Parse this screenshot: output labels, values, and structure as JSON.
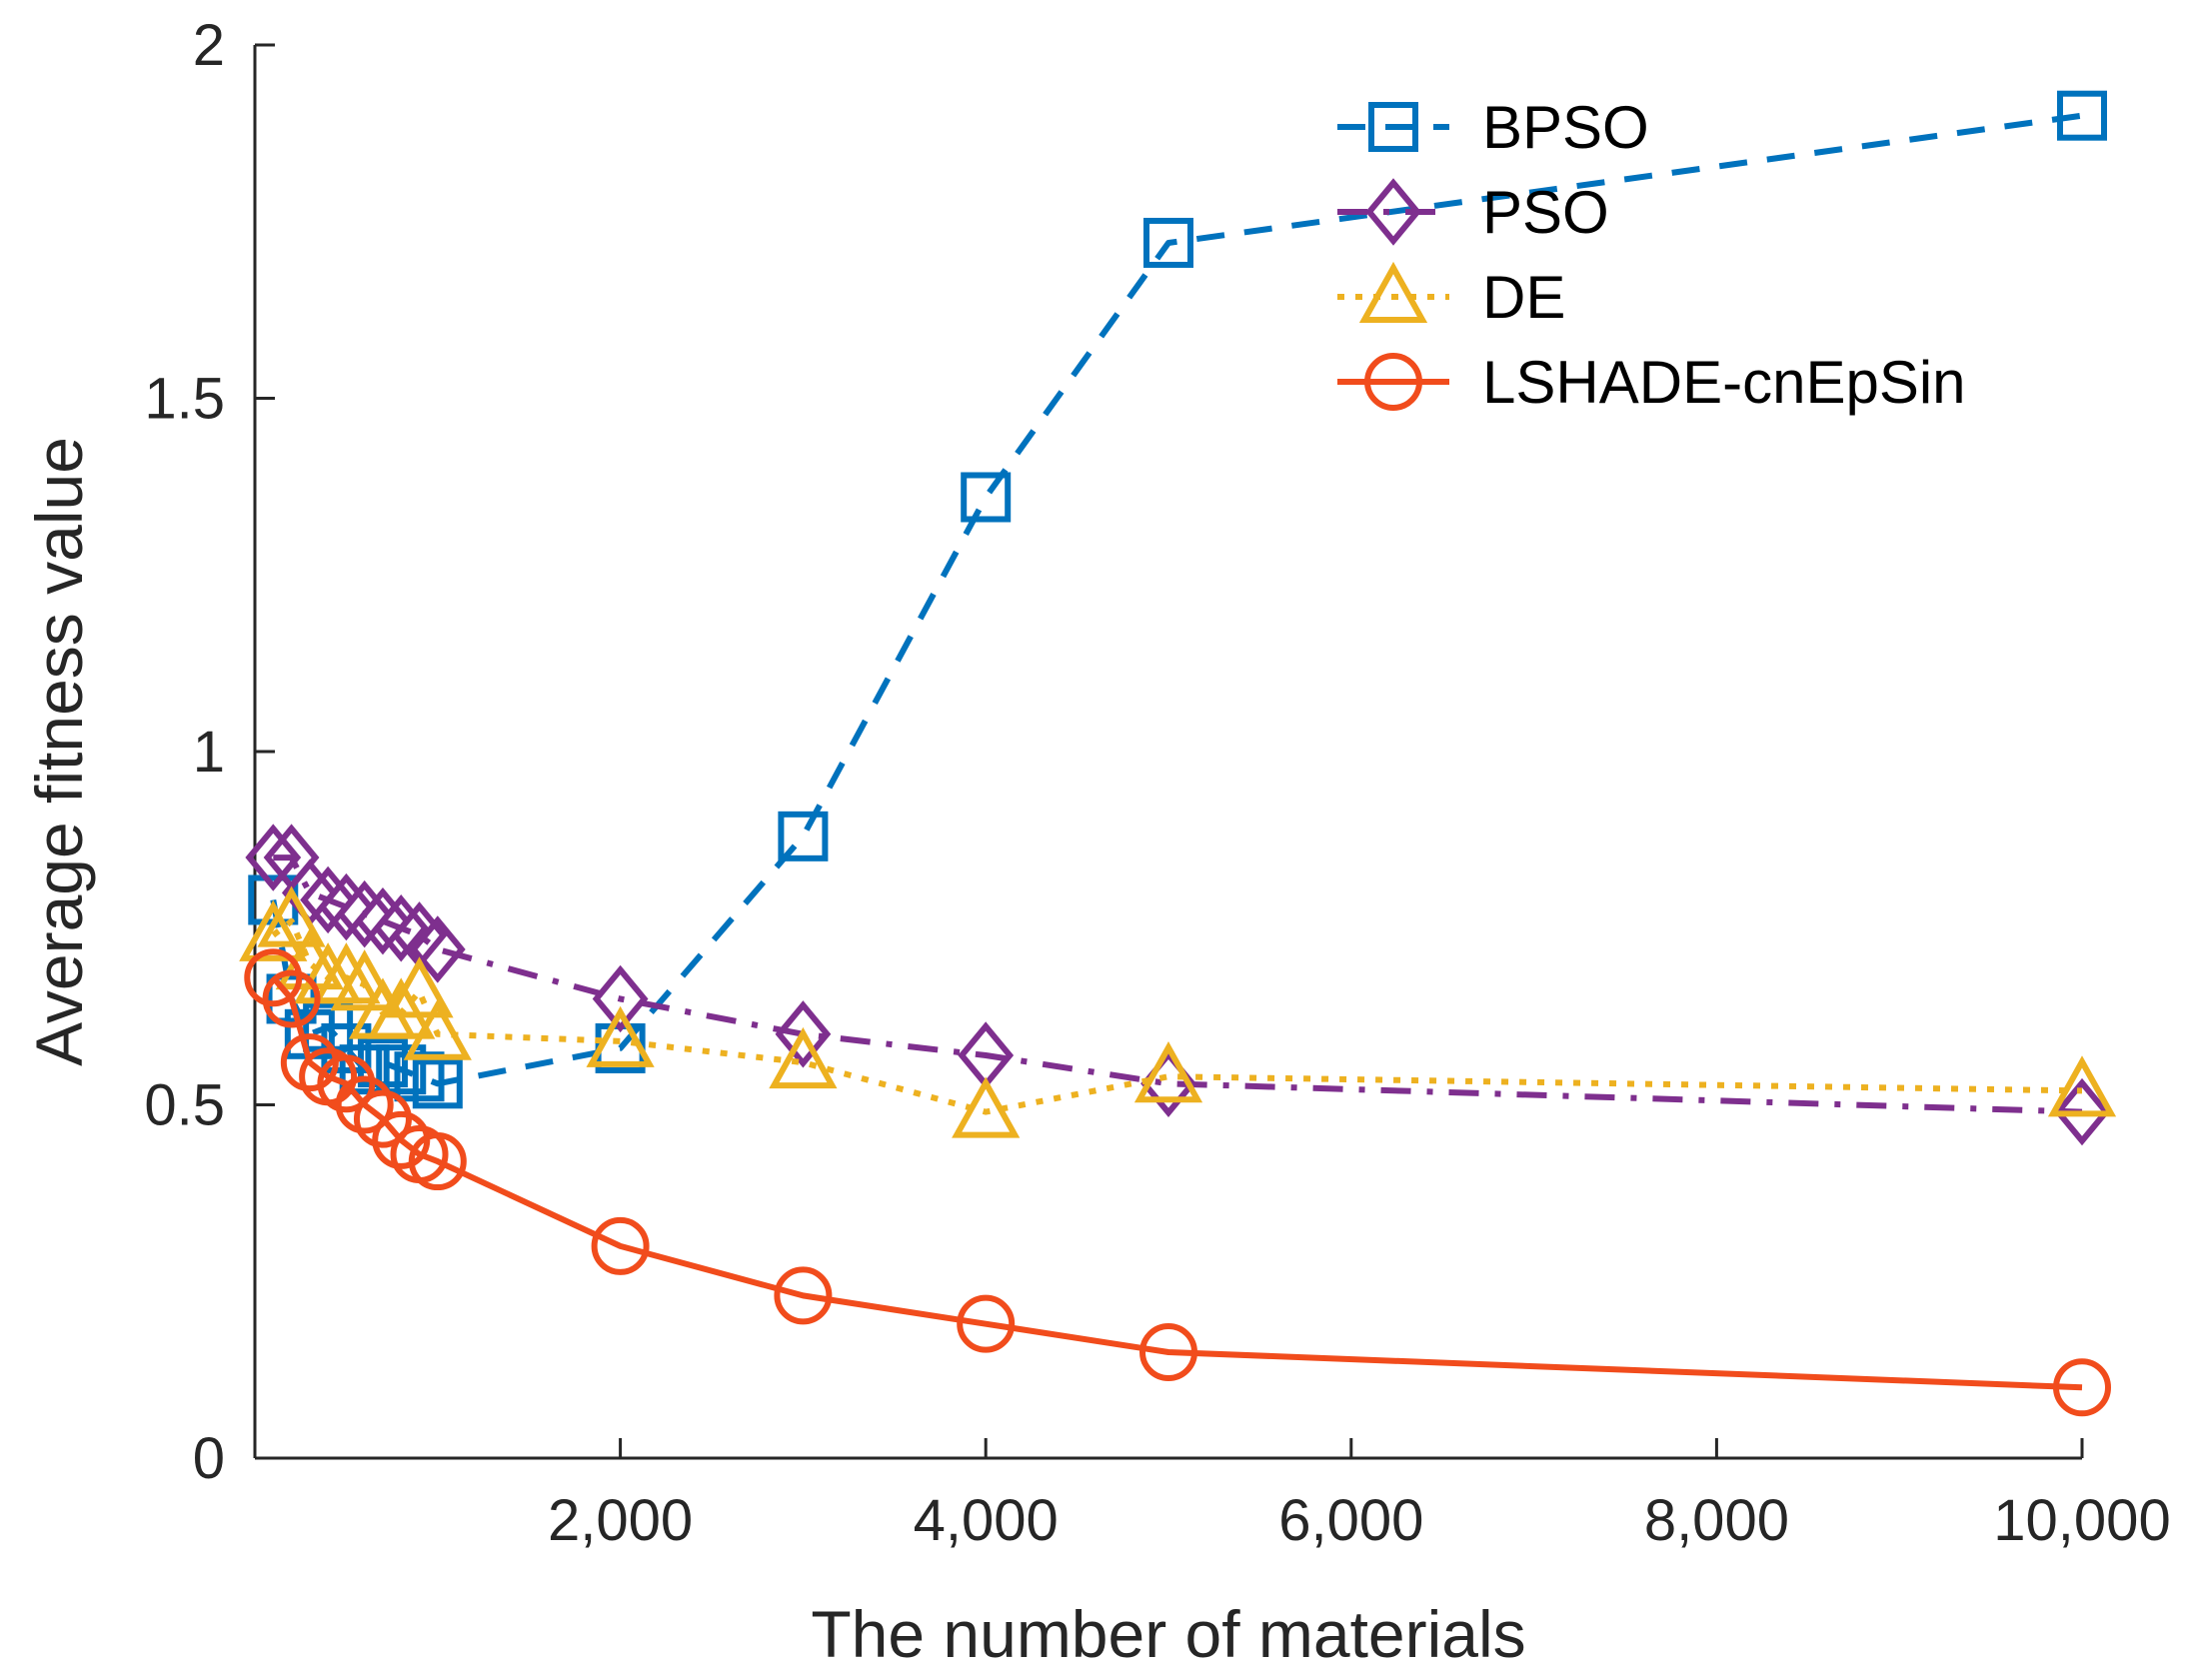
{
  "chart_data": {
    "type": "line",
    "title": "",
    "xlabel": "The number of materials",
    "ylabel": "Average fitness value",
    "xlim": [
      0,
      10000
    ],
    "ylim": [
      0,
      2
    ],
    "x_ticks": [
      2000,
      4000,
      6000,
      8000,
      10000
    ],
    "x_tick_labels": [
      "2,000",
      "4,000",
      "6,000",
      "8,000",
      "10,000"
    ],
    "y_ticks": [
      0,
      0.5,
      1,
      1.5,
      2
    ],
    "y_tick_labels": [
      "0",
      "0.5",
      "1",
      "1.5",
      "2"
    ],
    "grid": false,
    "legend_position": "top-right",
    "x": [
      100,
      200,
      300,
      400,
      500,
      600,
      700,
      800,
      900,
      1000,
      2000,
      3000,
      4000,
      5000,
      10000
    ],
    "series": [
      {
        "name": "BPSO",
        "color": "#0072BD",
        "line_style": "dashed",
        "marker": "square",
        "values": [
          0.79,
          0.65,
          0.6,
          0.61,
          0.58,
          0.55,
          0.56,
          0.55,
          0.54,
          0.53,
          0.58,
          0.88,
          1.36,
          1.72,
          1.9
        ]
      },
      {
        "name": "PSO",
        "color": "#7E2F8E",
        "line_style": "dashdot",
        "marker": "diamond",
        "values": [
          0.85,
          0.85,
          0.8,
          0.79,
          0.78,
          0.77,
          0.76,
          0.75,
          0.74,
          0.72,
          0.65,
          0.6,
          0.57,
          0.53,
          0.49
        ]
      },
      {
        "name": "DE",
        "color": "#EDB120",
        "line_style": "dotted",
        "marker": "triangle",
        "values": [
          0.74,
          0.76,
          0.7,
          0.68,
          0.68,
          0.67,
          0.63,
          0.63,
          0.66,
          0.6,
          0.59,
          0.56,
          0.49,
          0.54,
          0.52
        ]
      },
      {
        "name": "LSHADE-cnEpSin",
        "color": "#F14C1C",
        "line_style": "solid",
        "marker": "circle",
        "values": [
          0.68,
          0.65,
          0.56,
          0.54,
          0.53,
          0.5,
          0.48,
          0.45,
          0.43,
          0.42,
          0.3,
          0.23,
          0.19,
          0.15,
          0.1
        ]
      }
    ]
  }
}
